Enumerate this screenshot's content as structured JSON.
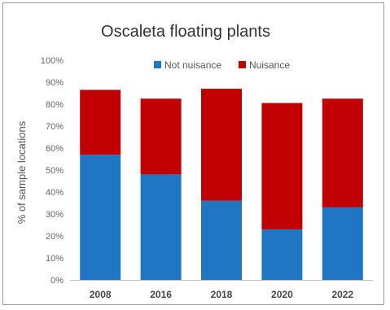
{
  "chart_data": {
    "type": "bar",
    "stacked": true,
    "title": "Oscaleta floating plants",
    "xlabel": "",
    "ylabel": "% of sample locations",
    "ylim": [
      0,
      100
    ],
    "yticks": [
      "0%",
      "10%",
      "20%",
      "30%",
      "40%",
      "50%",
      "60%",
      "70%",
      "80%",
      "90%",
      "100%"
    ],
    "categories": [
      "2008",
      "2016",
      "2018",
      "2020",
      "2022"
    ],
    "series": [
      {
        "name": "Not nuisance",
        "color": "#1f77c4",
        "values": [
          57,
          48,
          36,
          23,
          33
        ]
      },
      {
        "name": "Nuisance",
        "color": "#c00000",
        "values": [
          29.5,
          34.5,
          51,
          57.5,
          49.5
        ]
      }
    ],
    "legend": "top",
    "grid": false
  }
}
